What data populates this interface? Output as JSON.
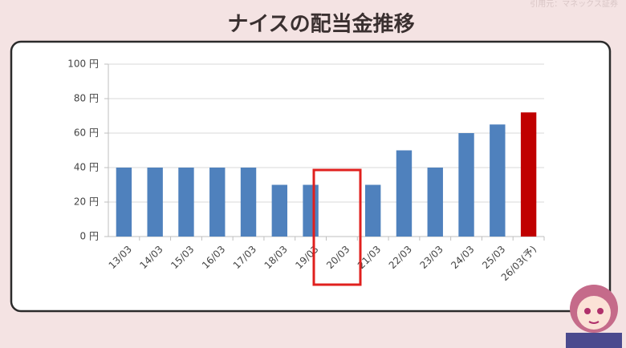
{
  "source": "引用元：マネックス証券",
  "chart_data": {
    "type": "bar",
    "title": "ナイスの配当金推移",
    "categories": [
      "13/03",
      "14/03",
      "15/03",
      "16/03",
      "17/03",
      "18/03",
      "19/03",
      "20/03",
      "21/03",
      "22/03",
      "23/03",
      "24/03",
      "25/03",
      "26/03(予)"
    ],
    "values": [
      40,
      40,
      40,
      40,
      40,
      30,
      30,
      0,
      30,
      50,
      40,
      60,
      65,
      72
    ],
    "colors": [
      "#4f81bd",
      "#4f81bd",
      "#4f81bd",
      "#4f81bd",
      "#4f81bd",
      "#4f81bd",
      "#4f81bd",
      "#4f81bd",
      "#4f81bd",
      "#4f81bd",
      "#4f81bd",
      "#4f81bd",
      "#4f81bd",
      "#c00000"
    ],
    "ylim": [
      0,
      100
    ],
    "yticks": [
      {
        "value": 0,
        "label": "0 円"
      },
      {
        "value": 20,
        "label": "20 円"
      },
      {
        "value": 40,
        "label": "40 円"
      },
      {
        "value": 60,
        "label": "60 円"
      },
      {
        "value": 80,
        "label": "80 円"
      },
      {
        "value": 100,
        "label": "100 円"
      }
    ],
    "grid": true
  }
}
